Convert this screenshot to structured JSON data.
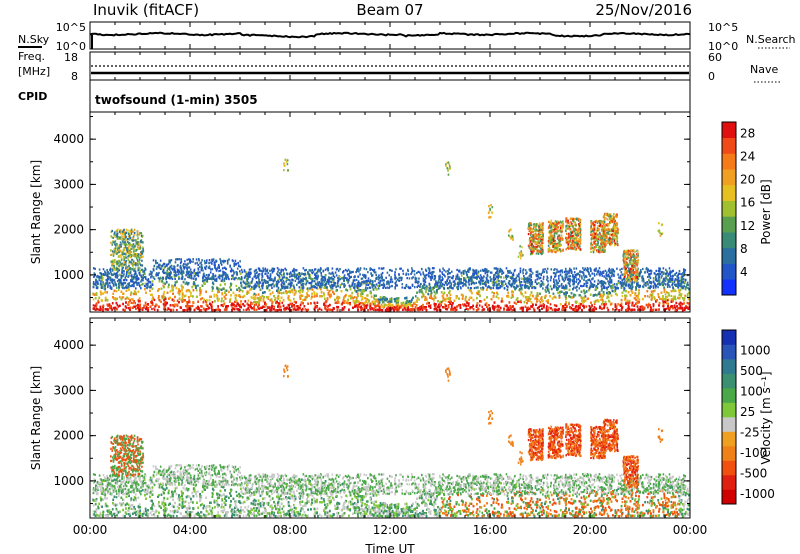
{
  "header": {
    "station": "Inuvik (fitACF)",
    "beam": "Beam 07",
    "date": "25/Nov/2016"
  },
  "noise_panel": {
    "left_label": "N.Sky",
    "right_label": "N.Search",
    "left_ticks": [
      "10^5",
      "10^0"
    ],
    "right_ticks": [
      "10^5",
      "10^0"
    ]
  },
  "freq_panel": {
    "left_label_top": "Freq.",
    "left_label_bottom": "[MHz]",
    "right_label": "Nave",
    "left_ticks": [
      "18",
      "8"
    ],
    "right_ticks": [
      "60",
      "0"
    ]
  },
  "cpid_panel": {
    "label": "CPID",
    "text": "twofsound (1-min) 3505"
  },
  "x_axis": {
    "label": "Time UT",
    "ticks": [
      "00:00",
      "04:00",
      "08:00",
      "12:00",
      "16:00",
      "20:00",
      "00:00"
    ],
    "range_hours": [
      0,
      24
    ]
  },
  "chart_data": [
    {
      "type": "heatmap",
      "panel": "power",
      "ylabel": "Slant Range [km]",
      "yticks": [
        "1000",
        "2000",
        "3000",
        "4000"
      ],
      "ylim": [
        180,
        4600
      ],
      "colorbar": {
        "label": "Power [dB]",
        "ticks": [
          "4",
          "8",
          "12",
          "16",
          "20",
          "24",
          "28"
        ],
        "range": [
          0,
          30
        ],
        "colors": [
          "#1432ff",
          "#2255c8",
          "#2a6fa0",
          "#3a8a78",
          "#58a050",
          "#a0c030",
          "#e6c020",
          "#f0a020",
          "#f57a18",
          "#f04a18",
          "#e01010"
        ]
      }
    },
    {
      "type": "heatmap",
      "panel": "velocity",
      "ylabel": "Slant Range [km]",
      "yticks": [
        "1000",
        "2000",
        "3000",
        "4000"
      ],
      "ylim": [
        180,
        4600
      ],
      "colorbar": {
        "label": "Velocity [m s⁻¹]",
        "ticks": [
          "1000",
          "500",
          "100",
          "25",
          "-25",
          "-100",
          "-500",
          "-1000"
        ],
        "colors": [
          "#1530b0",
          "#2a55b8",
          "#2f7a90",
          "#3a9070",
          "#4aa848",
          "#7ec83a",
          "#c8c8c8",
          "#f0a020",
          "#f08018",
          "#f05010",
          "#e02010",
          "#d00000"
        ]
      }
    }
  ]
}
